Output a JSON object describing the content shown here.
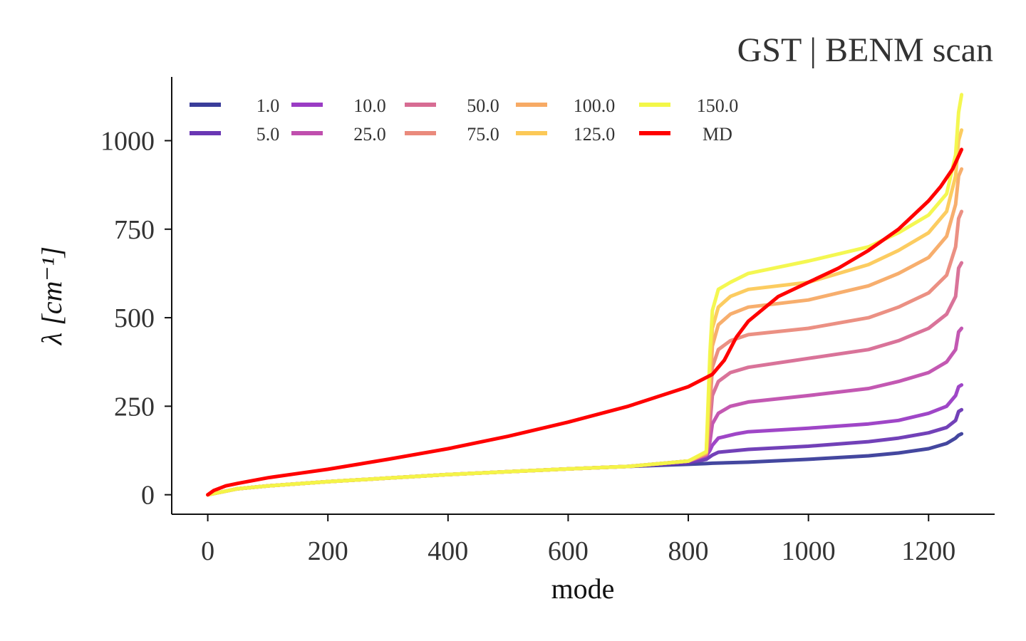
{
  "chart_data": {
    "type": "line",
    "title": "GST | BENM scan",
    "xlabel": "mode",
    "ylabel": "λ [cm⁻¹]",
    "xlim": [
      -60,
      1310
    ],
    "ylim": [
      -55,
      1180
    ],
    "xticks": [
      0,
      200,
      400,
      600,
      800,
      1000,
      1200
    ],
    "yticks": [
      0,
      250,
      500,
      750,
      1000
    ],
    "grid": false,
    "legend": {
      "placement": "top-left",
      "columns": 7
    },
    "series": [
      {
        "name": "1.0",
        "color": "#3a3d9a",
        "x": [
          0,
          50,
          100,
          200,
          300,
          400,
          500,
          600,
          700,
          800,
          830,
          840,
          900,
          1000,
          1100,
          1150,
          1200,
          1230,
          1245,
          1250,
          1255
        ],
        "y": [
          0,
          17,
          25,
          37,
          47,
          57,
          65,
          73,
          80,
          86,
          88,
          89,
          92,
          100,
          110,
          118,
          130,
          145,
          160,
          168,
          172
        ]
      },
      {
        "name": "5.0",
        "color": "#6a37b4",
        "x": [
          0,
          50,
          100,
          200,
          300,
          400,
          500,
          600,
          700,
          800,
          830,
          840,
          850,
          900,
          1000,
          1100,
          1150,
          1200,
          1230,
          1245,
          1250,
          1255
        ],
        "y": [
          0,
          17,
          25,
          37,
          47,
          57,
          65,
          73,
          80,
          90,
          100,
          112,
          120,
          128,
          137,
          150,
          160,
          175,
          190,
          210,
          235,
          240
        ]
      },
      {
        "name": "10.0",
        "color": "#9a3cc4",
        "x": [
          0,
          50,
          100,
          200,
          300,
          400,
          500,
          600,
          700,
          800,
          830,
          836,
          840,
          850,
          880,
          900,
          1000,
          1100,
          1150,
          1200,
          1230,
          1245,
          1250,
          1255
        ],
        "y": [
          0,
          17,
          25,
          37,
          47,
          57,
          65,
          73,
          80,
          95,
          110,
          125,
          140,
          160,
          172,
          178,
          188,
          200,
          210,
          230,
          250,
          280,
          305,
          310
        ]
      },
      {
        "name": "25.0",
        "color": "#c04fae",
        "x": [
          0,
          50,
          100,
          200,
          300,
          400,
          500,
          600,
          700,
          800,
          830,
          836,
          840,
          850,
          870,
          900,
          1000,
          1100,
          1150,
          1200,
          1230,
          1245,
          1250,
          1255
        ],
        "y": [
          0,
          17,
          25,
          37,
          47,
          57,
          65,
          73,
          80,
          95,
          112,
          150,
          200,
          230,
          250,
          262,
          280,
          300,
          320,
          345,
          375,
          410,
          460,
          470
        ]
      },
      {
        "name": "50.0",
        "color": "#d76c93",
        "x": [
          0,
          50,
          100,
          200,
          300,
          400,
          500,
          600,
          700,
          800,
          830,
          836,
          840,
          850,
          870,
          900,
          1000,
          1100,
          1150,
          1200,
          1230,
          1245,
          1250,
          1255
        ],
        "y": [
          0,
          17,
          25,
          37,
          47,
          57,
          65,
          73,
          80,
          95,
          115,
          200,
          280,
          320,
          345,
          360,
          385,
          410,
          435,
          470,
          510,
          560,
          640,
          655
        ]
      },
      {
        "name": "75.0",
        "color": "#ea8a7c",
        "x": [
          0,
          50,
          100,
          200,
          300,
          400,
          500,
          600,
          700,
          800,
          830,
          836,
          840,
          850,
          870,
          900,
          1000,
          1100,
          1150,
          1200,
          1230,
          1245,
          1250,
          1255
        ],
        "y": [
          0,
          17,
          25,
          37,
          47,
          57,
          65,
          73,
          80,
          95,
          115,
          250,
          360,
          410,
          435,
          452,
          470,
          500,
          530,
          570,
          620,
          700,
          780,
          800
        ]
      },
      {
        "name": "100.0",
        "color": "#f7aa65",
        "x": [
          0,
          50,
          100,
          200,
          300,
          400,
          500,
          600,
          700,
          800,
          830,
          836,
          840,
          850,
          870,
          900,
          1000,
          1100,
          1150,
          1200,
          1230,
          1245,
          1250,
          1255
        ],
        "y": [
          0,
          17,
          25,
          37,
          47,
          57,
          65,
          73,
          80,
          95,
          118,
          300,
          420,
          480,
          510,
          530,
          550,
          590,
          625,
          670,
          730,
          820,
          900,
          920
        ]
      },
      {
        "name": "125.0",
        "color": "#fcc957",
        "x": [
          0,
          50,
          100,
          200,
          300,
          400,
          500,
          600,
          700,
          800,
          830,
          836,
          840,
          850,
          870,
          900,
          1000,
          1100,
          1150,
          1200,
          1230,
          1245,
          1250,
          1255
        ],
        "y": [
          0,
          17,
          25,
          37,
          47,
          57,
          65,
          73,
          80,
          95,
          120,
          350,
          470,
          530,
          560,
          580,
          600,
          650,
          690,
          740,
          800,
          900,
          1000,
          1030
        ]
      },
      {
        "name": "150.0",
        "color": "#f3f748",
        "x": [
          0,
          50,
          100,
          200,
          300,
          400,
          500,
          600,
          700,
          800,
          830,
          836,
          840,
          850,
          870,
          900,
          1000,
          1100,
          1150,
          1200,
          1230,
          1245,
          1250,
          1255
        ],
        "y": [
          0,
          17,
          25,
          37,
          47,
          57,
          65,
          73,
          80,
          95,
          122,
          400,
          520,
          580,
          600,
          625,
          660,
          700,
          740,
          790,
          850,
          960,
          1080,
          1130
        ]
      },
      {
        "name": "MD",
        "color": "#ff0000",
        "x": [
          0,
          10,
          30,
          50,
          100,
          150,
          200,
          300,
          400,
          500,
          600,
          700,
          800,
          840,
          860,
          880,
          900,
          950,
          1000,
          1050,
          1100,
          1150,
          1200,
          1220,
          1240,
          1255
        ],
        "y": [
          0,
          12,
          25,
          32,
          48,
          60,
          72,
          100,
          130,
          165,
          205,
          250,
          305,
          340,
          380,
          445,
          490,
          560,
          600,
          640,
          690,
          750,
          830,
          870,
          920,
          975
        ]
      }
    ]
  }
}
